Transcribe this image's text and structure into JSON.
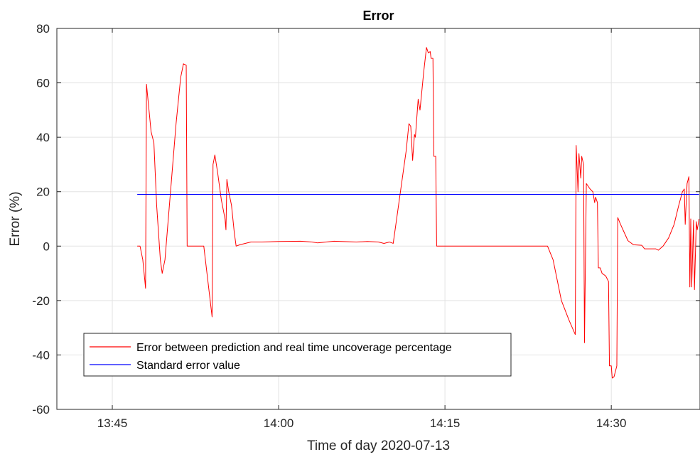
{
  "chart_data": {
    "type": "line",
    "title": "Error",
    "xlabel": "Time of day 2020-07-13",
    "ylabel": "Error (%)",
    "xlim": [
      "13:40",
      "14:38"
    ],
    "ylim": [
      -60,
      80
    ],
    "grid": true,
    "legend_position": "bottom-left",
    "x_ticks": [
      "13:45",
      "14:00",
      "14:15",
      "14:30"
    ],
    "y_ticks": [
      80,
      60,
      40,
      20,
      0,
      -20,
      -40,
      -60
    ],
    "series": [
      {
        "name": "Error between prediction and real time uncoverage percentage",
        "color": "#ff0000",
        "points": [
          [
            "13:47:15",
            0
          ],
          [
            "13:47:30",
            0
          ],
          [
            "13:47:45",
            -5
          ],
          [
            "13:48:00",
            -15.5
          ],
          [
            "13:48:05",
            59.5
          ],
          [
            "13:48:30",
            42
          ],
          [
            "13:48:45",
            38
          ],
          [
            "13:49:00",
            15
          ],
          [
            "13:49:20",
            -5
          ],
          [
            "13:49:30",
            -10
          ],
          [
            "13:49:45",
            -5
          ],
          [
            "13:50:15",
            20
          ],
          [
            "13:50:45",
            45
          ],
          [
            "13:51:10",
            62
          ],
          [
            "13:51:25",
            67
          ],
          [
            "13:51:40",
            66.5
          ],
          [
            "13:51:45",
            0
          ],
          [
            "13:53:00",
            0
          ],
          [
            "13:53:15",
            0
          ],
          [
            "13:54:00",
            -26
          ],
          [
            "13:54:05",
            30
          ],
          [
            "13:54:15",
            33.5
          ],
          [
            "13:54:30",
            27
          ],
          [
            "13:54:50",
            17
          ],
          [
            "13:55:10",
            10
          ],
          [
            "13:55:15",
            6
          ],
          [
            "13:55:20",
            24.5
          ],
          [
            "13:55:30",
            20
          ],
          [
            "13:55:45",
            15
          ],
          [
            "13:56:00",
            5
          ],
          [
            "13:56:10",
            0
          ],
          [
            "13:56:30",
            0.5
          ],
          [
            "13:57:30",
            1.5
          ],
          [
            "13:58:30",
            1.5
          ],
          [
            "14:00:00",
            1.7
          ],
          [
            "14:02:00",
            1.8
          ],
          [
            "14:03:00",
            1.5
          ],
          [
            "14:03:30",
            1.2
          ],
          [
            "14:05:00",
            1.8
          ],
          [
            "14:07:00",
            1.5
          ],
          [
            "14:08:00",
            1.7
          ],
          [
            "14:09:00",
            1.5
          ],
          [
            "14:09:30",
            1
          ],
          [
            "14:10:00",
            1.5
          ],
          [
            "14:10:20",
            1
          ],
          [
            "14:11:30",
            35
          ],
          [
            "14:11:45",
            45
          ],
          [
            "14:11:55",
            44
          ],
          [
            "14:12:05",
            31.5
          ],
          [
            "14:12:15",
            41
          ],
          [
            "14:12:20",
            40
          ],
          [
            "14:12:35",
            54
          ],
          [
            "14:12:45",
            50
          ],
          [
            "14:13:05",
            64
          ],
          [
            "14:13:20",
            73
          ],
          [
            "14:13:30",
            71
          ],
          [
            "14:13:40",
            71.5
          ],
          [
            "14:13:45",
            69
          ],
          [
            "14:13:55",
            69
          ],
          [
            "14:14:00",
            33
          ],
          [
            "14:14:10",
            33
          ],
          [
            "14:14:15",
            0
          ],
          [
            "14:24:00",
            0
          ],
          [
            "14:24:15",
            0
          ],
          [
            "14:24:45",
            -5
          ],
          [
            "14:25:30",
            -20
          ],
          [
            "14:26:10",
            -27
          ],
          [
            "14:26:45",
            -32.5
          ],
          [
            "14:26:50",
            37
          ],
          [
            "14:27:00",
            20
          ],
          [
            "14:27:05",
            34
          ],
          [
            "14:27:15",
            25
          ],
          [
            "14:27:20",
            33
          ],
          [
            "14:27:30",
            30
          ],
          [
            "14:27:35",
            -35.5
          ],
          [
            "14:27:45",
            23
          ],
          [
            "14:28:05",
            21
          ],
          [
            "14:28:20",
            20
          ],
          [
            "14:28:30",
            16
          ],
          [
            "14:28:35",
            18
          ],
          [
            "14:28:45",
            16
          ],
          [
            "14:28:50",
            -8
          ],
          [
            "14:29:00",
            -8
          ],
          [
            "14:29:10",
            -10
          ],
          [
            "14:29:30",
            -11
          ],
          [
            "14:29:45",
            -13
          ],
          [
            "14:29:50",
            -44
          ],
          [
            "14:30:00",
            -44
          ],
          [
            "14:30:05",
            -48.5
          ],
          [
            "14:30:15",
            -48
          ],
          [
            "14:30:30",
            -44
          ],
          [
            "14:30:35",
            10.5
          ],
          [
            "14:30:50",
            8
          ],
          [
            "14:31:10",
            5
          ],
          [
            "14:31:30",
            2
          ],
          [
            "14:32:00",
            0.5
          ],
          [
            "14:32:45",
            0.3
          ],
          [
            "14:33:00",
            -1
          ],
          [
            "14:33:30",
            -1
          ],
          [
            "14:34:00",
            -1
          ],
          [
            "14:34:15",
            -1.5
          ],
          [
            "14:34:40",
            0
          ],
          [
            "14:35:10",
            3
          ],
          [
            "14:35:40",
            8
          ],
          [
            "14:36:05",
            15
          ],
          [
            "14:36:25",
            20
          ],
          [
            "14:36:35",
            21
          ],
          [
            "14:36:40",
            8
          ],
          [
            "14:36:50",
            23
          ],
          [
            "14:37:00",
            25.5
          ],
          [
            "14:37:05",
            -15
          ],
          [
            "14:37:10",
            10
          ],
          [
            "14:37:15",
            -15
          ],
          [
            "14:37:25",
            9.5
          ],
          [
            "14:37:30",
            -16
          ],
          [
            "14:37:40",
            9
          ],
          [
            "14:37:45",
            6
          ],
          [
            "14:37:55",
            10
          ]
        ]
      },
      {
        "name": "Standard error value",
        "color": "#0000ff",
        "points": [
          [
            "13:47:15",
            19
          ],
          [
            "14:37:55",
            19
          ]
        ]
      }
    ]
  }
}
